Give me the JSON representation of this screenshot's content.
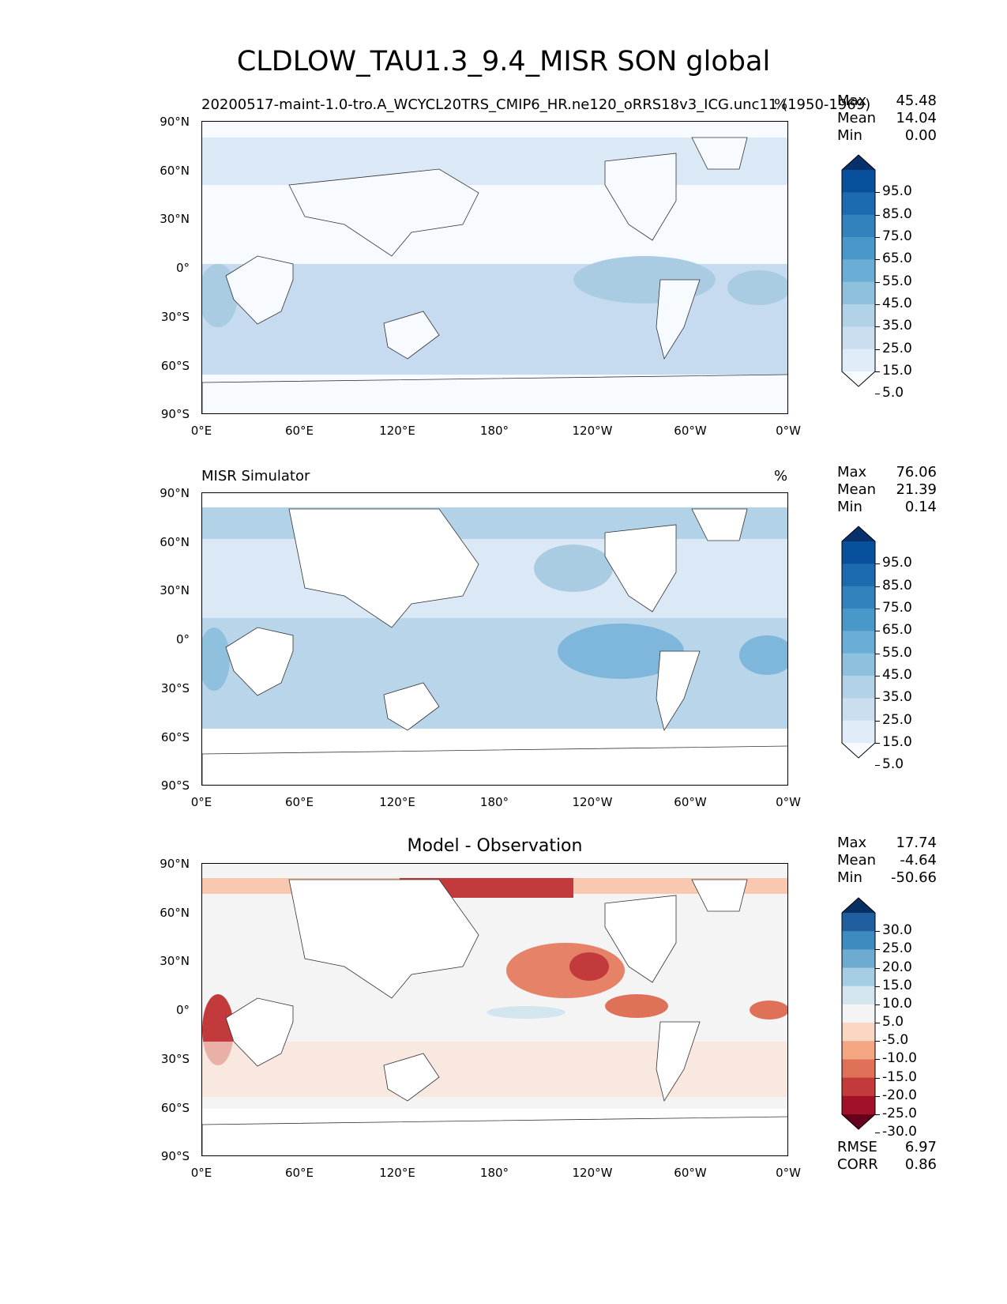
{
  "figure": {
    "title": "CLDLOW_TAU1.3_9.4_MISR SON global"
  },
  "axes": {
    "lat_labels": [
      "90°N",
      "60°N",
      "30°N",
      "0°",
      "30°S",
      "60°S",
      "90°S"
    ],
    "lon_labels": [
      "0°E",
      "60°E",
      "120°E",
      "180°",
      "120°W",
      "60°W",
      "0°W"
    ]
  },
  "panels": [
    {
      "title_left": "20200517-maint-1.0-tro.A_WCYCL20TRS_CMIP6_HR.ne120_oRRS18v3_ICG.unc11 (1950-1969)",
      "title_center": "",
      "title_right": "%",
      "stats": [
        {
          "label": "Max",
          "value": "45.48"
        },
        {
          "label": "Mean",
          "value": "14.04"
        },
        {
          "label": "Min",
          "value": "0.00"
        }
      ],
      "colorbar_labels": [
        "95.0",
        "85.0",
        "75.0",
        "65.0",
        "55.0",
        "45.0",
        "35.0",
        "25.0",
        "15.0",
        "5.0"
      ],
      "colorbar_colors": [
        "#08306b",
        "#08509b",
        "#1c6aaf",
        "#3282be",
        "#4a98c9",
        "#6aaed6",
        "#8fc1de",
        "#b1d2e7",
        "#cadef0",
        "#e0ecf8",
        "#f7fbff"
      ],
      "bottom_stats": []
    },
    {
      "title_left": "MISR Simulator",
      "title_center": "",
      "title_right": "%",
      "stats": [
        {
          "label": "Max",
          "value": "76.06"
        },
        {
          "label": "Mean",
          "value": "21.39"
        },
        {
          "label": "Min",
          "value": "0.14"
        }
      ],
      "colorbar_labels": [
        "95.0",
        "85.0",
        "75.0",
        "65.0",
        "55.0",
        "45.0",
        "35.0",
        "25.0",
        "15.0",
        "5.0"
      ],
      "colorbar_colors": [
        "#08306b",
        "#08509b",
        "#1c6aaf",
        "#3282be",
        "#4a98c9",
        "#6aaed6",
        "#8fc1de",
        "#b1d2e7",
        "#cadef0",
        "#e0ecf8",
        "#f7fbff"
      ],
      "bottom_stats": []
    },
    {
      "title_left": "",
      "title_center": "Model - Observation",
      "title_right": "",
      "stats": [
        {
          "label": "Max",
          "value": "17.74"
        },
        {
          "label": "Mean",
          "value": "-4.64"
        },
        {
          "label": "Min",
          "value": "-50.66"
        }
      ],
      "colorbar_labels": [
        "30.0",
        "25.0",
        "20.0",
        "15.0",
        "10.0",
        "5.0",
        "-5.0",
        "-10.0",
        "-15.0",
        "-20.0",
        "-25.0",
        "-30.0"
      ],
      "colorbar_colors": [
        "#053061",
        "#1f5f9f",
        "#3d8bbf",
        "#6eabd0",
        "#a5cde3",
        "#d3e5ef",
        "#f4f4f4",
        "#fbd6c2",
        "#f4a582",
        "#de7158",
        "#c23a3b",
        "#a11228",
        "#67001f"
      ],
      "bottom_stats": [
        {
          "label": "RMSE",
          "value": "6.97"
        },
        {
          "label": "CORR",
          "value": "0.86"
        }
      ]
    }
  ]
}
